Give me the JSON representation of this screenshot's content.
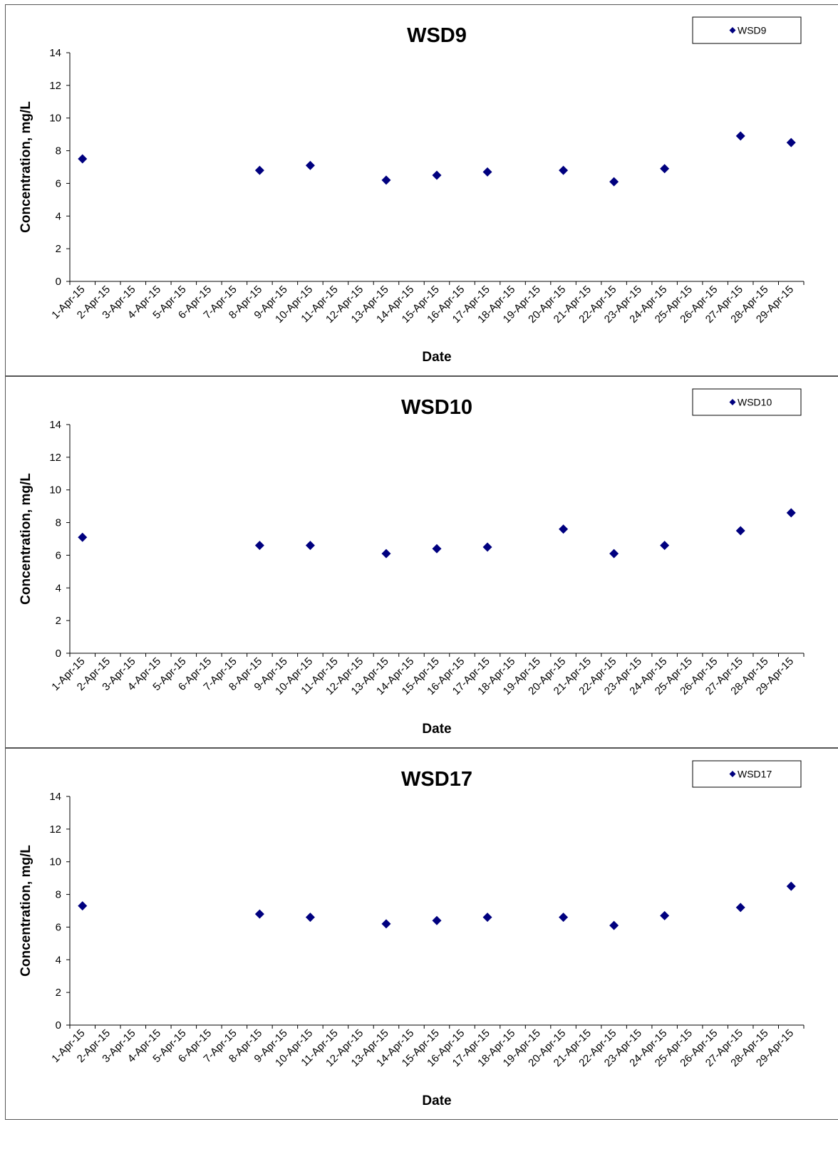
{
  "chart_data": [
    {
      "type": "scatter",
      "title": "WSD9",
      "xlabel": "Date",
      "ylabel": "Concentration, mg/L",
      "ylim": [
        0,
        14
      ],
      "yticks": [
        0,
        2,
        4,
        6,
        8,
        10,
        12,
        14
      ],
      "categories": [
        "1-Apr-15",
        "2-Apr-15",
        "3-Apr-15",
        "4-Apr-15",
        "5-Apr-15",
        "6-Apr-15",
        "7-Apr-15",
        "8-Apr-15",
        "9-Apr-15",
        "10-Apr-15",
        "11-Apr-15",
        "12-Apr-15",
        "13-Apr-15",
        "14-Apr-15",
        "15-Apr-15",
        "16-Apr-15",
        "17-Apr-15",
        "18-Apr-15",
        "19-Apr-15",
        "20-Apr-15",
        "21-Apr-15",
        "22-Apr-15",
        "23-Apr-15",
        "24-Apr-15",
        "25-Apr-15",
        "26-Apr-15",
        "27-Apr-15",
        "28-Apr-15",
        "29-Apr-15"
      ],
      "grid": false,
      "legend_position": "top-right",
      "series": [
        {
          "name": "WSD9",
          "color": "#00007F",
          "marker": "diamond",
          "points": [
            {
              "x": "1-Apr-15",
              "y": 7.5
            },
            {
              "x": "8-Apr-15",
              "y": 6.8
            },
            {
              "x": "10-Apr-15",
              "y": 7.1
            },
            {
              "x": "13-Apr-15",
              "y": 6.2
            },
            {
              "x": "15-Apr-15",
              "y": 6.5
            },
            {
              "x": "17-Apr-15",
              "y": 6.7
            },
            {
              "x": "20-Apr-15",
              "y": 6.8
            },
            {
              "x": "22-Apr-15",
              "y": 6.1
            },
            {
              "x": "24-Apr-15",
              "y": 6.9
            },
            {
              "x": "27-Apr-15",
              "y": 8.9
            },
            {
              "x": "29-Apr-15",
              "y": 8.5
            }
          ]
        }
      ]
    },
    {
      "type": "scatter",
      "title": "WSD10",
      "xlabel": "Date",
      "ylabel": "Concentration, mg/L",
      "ylim": [
        0,
        14
      ],
      "yticks": [
        0,
        2,
        4,
        6,
        8,
        10,
        12,
        14
      ],
      "categories": [
        "1-Apr-15",
        "2-Apr-15",
        "3-Apr-15",
        "4-Apr-15",
        "5-Apr-15",
        "6-Apr-15",
        "7-Apr-15",
        "8-Apr-15",
        "9-Apr-15",
        "10-Apr-15",
        "11-Apr-15",
        "12-Apr-15",
        "13-Apr-15",
        "14-Apr-15",
        "15-Apr-15",
        "16-Apr-15",
        "17-Apr-15",
        "18-Apr-15",
        "19-Apr-15",
        "20-Apr-15",
        "21-Apr-15",
        "22-Apr-15",
        "23-Apr-15",
        "24-Apr-15",
        "25-Apr-15",
        "26-Apr-15",
        "27-Apr-15",
        "28-Apr-15",
        "29-Apr-15"
      ],
      "grid": false,
      "legend_position": "top-right",
      "series": [
        {
          "name": "WSD10",
          "color": "#00007F",
          "marker": "diamond",
          "points": [
            {
              "x": "1-Apr-15",
              "y": 7.1
            },
            {
              "x": "8-Apr-15",
              "y": 6.6
            },
            {
              "x": "10-Apr-15",
              "y": 6.6
            },
            {
              "x": "13-Apr-15",
              "y": 6.1
            },
            {
              "x": "15-Apr-15",
              "y": 6.4
            },
            {
              "x": "17-Apr-15",
              "y": 6.5
            },
            {
              "x": "20-Apr-15",
              "y": 7.6
            },
            {
              "x": "22-Apr-15",
              "y": 6.1
            },
            {
              "x": "24-Apr-15",
              "y": 6.6
            },
            {
              "x": "27-Apr-15",
              "y": 7.5
            },
            {
              "x": "29-Apr-15",
              "y": 8.6
            }
          ]
        }
      ]
    },
    {
      "type": "scatter",
      "title": "WSD17",
      "xlabel": "Date",
      "ylabel": "Concentration, mg/L",
      "ylim": [
        0,
        14
      ],
      "yticks": [
        0,
        2,
        4,
        6,
        8,
        10,
        12,
        14
      ],
      "categories": [
        "1-Apr-15",
        "2-Apr-15",
        "3-Apr-15",
        "4-Apr-15",
        "5-Apr-15",
        "6-Apr-15",
        "7-Apr-15",
        "8-Apr-15",
        "9-Apr-15",
        "10-Apr-15",
        "11-Apr-15",
        "12-Apr-15",
        "13-Apr-15",
        "14-Apr-15",
        "15-Apr-15",
        "16-Apr-15",
        "17-Apr-15",
        "18-Apr-15",
        "19-Apr-15",
        "20-Apr-15",
        "21-Apr-15",
        "22-Apr-15",
        "23-Apr-15",
        "24-Apr-15",
        "25-Apr-15",
        "26-Apr-15",
        "27-Apr-15",
        "28-Apr-15",
        "29-Apr-15"
      ],
      "grid": false,
      "legend_position": "top-right",
      "series": [
        {
          "name": "WSD17",
          "color": "#00007F",
          "marker": "diamond",
          "points": [
            {
              "x": "1-Apr-15",
              "y": 7.3
            },
            {
              "x": "8-Apr-15",
              "y": 6.8
            },
            {
              "x": "10-Apr-15",
              "y": 6.6
            },
            {
              "x": "13-Apr-15",
              "y": 6.2
            },
            {
              "x": "15-Apr-15",
              "y": 6.4
            },
            {
              "x": "17-Apr-15",
              "y": 6.6
            },
            {
              "x": "20-Apr-15",
              "y": 6.6
            },
            {
              "x": "22-Apr-15",
              "y": 6.1
            },
            {
              "x": "24-Apr-15",
              "y": 6.7
            },
            {
              "x": "27-Apr-15",
              "y": 7.2
            },
            {
              "x": "29-Apr-15",
              "y": 8.5
            }
          ]
        }
      ]
    }
  ]
}
